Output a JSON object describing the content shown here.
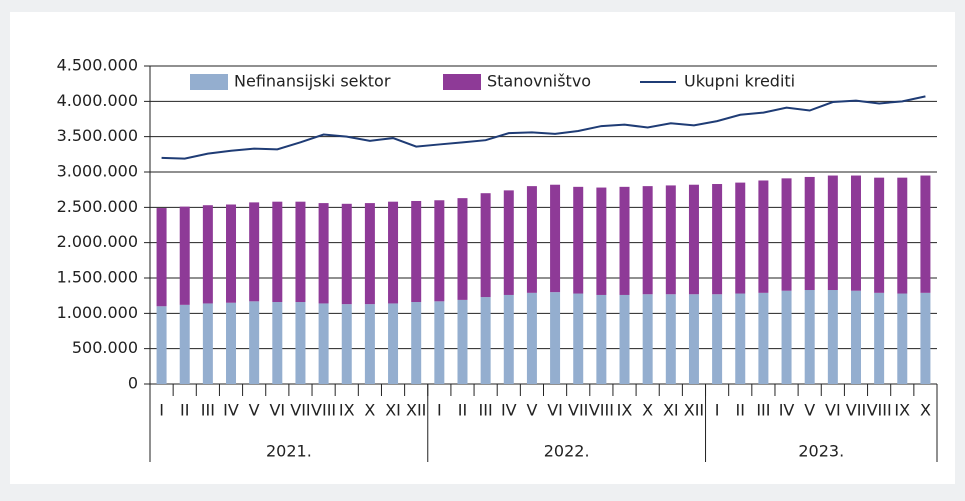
{
  "chart_data": {
    "type": "bar",
    "stacked": true,
    "categories": [
      "I",
      "II",
      "III",
      "IV",
      "V",
      "VI",
      "VII",
      "VIII",
      "IX",
      "X",
      "XI",
      "XII",
      "I",
      "II",
      "III",
      "IV",
      "V",
      "VI",
      "VII",
      "VIII",
      "IX",
      "X",
      "XI",
      "XII",
      "I",
      "II",
      "III",
      "IV",
      "V",
      "VI",
      "VII",
      "VIII",
      "IX",
      "X"
    ],
    "groups": [
      {
        "label": "2021.",
        "count": 12
      },
      {
        "label": "2022.",
        "count": 12
      },
      {
        "label": "2023.",
        "count": 10
      }
    ],
    "series": [
      {
        "name": "Nefinansijski sektor",
        "color": "#94aecf",
        "values": [
          1100000,
          1120000,
          1140000,
          1150000,
          1170000,
          1160000,
          1160000,
          1140000,
          1130000,
          1130000,
          1140000,
          1160000,
          1170000,
          1190000,
          1230000,
          1260000,
          1290000,
          1300000,
          1280000,
          1260000,
          1260000,
          1270000,
          1270000,
          1270000,
          1270000,
          1280000,
          1290000,
          1320000,
          1330000,
          1330000,
          1320000,
          1290000,
          1280000,
          1290000
        ]
      },
      {
        "name": "Stanovništvo",
        "color": "#8e3a97",
        "values": [
          1390000,
          1390000,
          1390000,
          1390000,
          1400000,
          1420000,
          1420000,
          1420000,
          1420000,
          1430000,
          1440000,
          1430000,
          1430000,
          1440000,
          1470000,
          1480000,
          1510000,
          1520000,
          1510000,
          1520000,
          1530000,
          1530000,
          1540000,
          1550000,
          1560000,
          1570000,
          1590000,
          1590000,
          1600000,
          1620000,
          1630000,
          1630000,
          1640000,
          1660000
        ]
      },
      {
        "name": "Ukupni krediti",
        "color": "#1f3c75",
        "type": "line",
        "values": [
          3200000,
          3190000,
          3260000,
          3300000,
          3330000,
          3320000,
          3420000,
          3530000,
          3500000,
          3440000,
          3480000,
          3360000,
          3390000,
          3420000,
          3450000,
          3550000,
          3560000,
          3540000,
          3580000,
          3650000,
          3670000,
          3630000,
          3690000,
          3660000,
          3720000,
          3810000,
          3840000,
          3910000,
          3870000,
          3990000,
          4010000,
          3970000,
          4000000,
          4070000
        ]
      }
    ],
    "ylim": [
      0,
      4500000
    ],
    "yticks": [
      0,
      {
        "value": 500000,
        "label": "500.000"
      },
      {
        "value": 1000000,
        "label": "1.000.000"
      },
      {
        "value": 1500000,
        "label": "1.500.000"
      },
      {
        "value": 2000000,
        "label": "2.000.000"
      },
      {
        "value": 2500000,
        "label": "2.500.000"
      },
      {
        "value": 3000000,
        "label": "3.000.000"
      },
      {
        "value": 3500000,
        "label": "3.500.000"
      },
      {
        "value": 4000000,
        "label": "4.000.000"
      },
      {
        "value": 4500000,
        "label": "4.500.000"
      }
    ],
    "grid": true,
    "legend": "top"
  }
}
